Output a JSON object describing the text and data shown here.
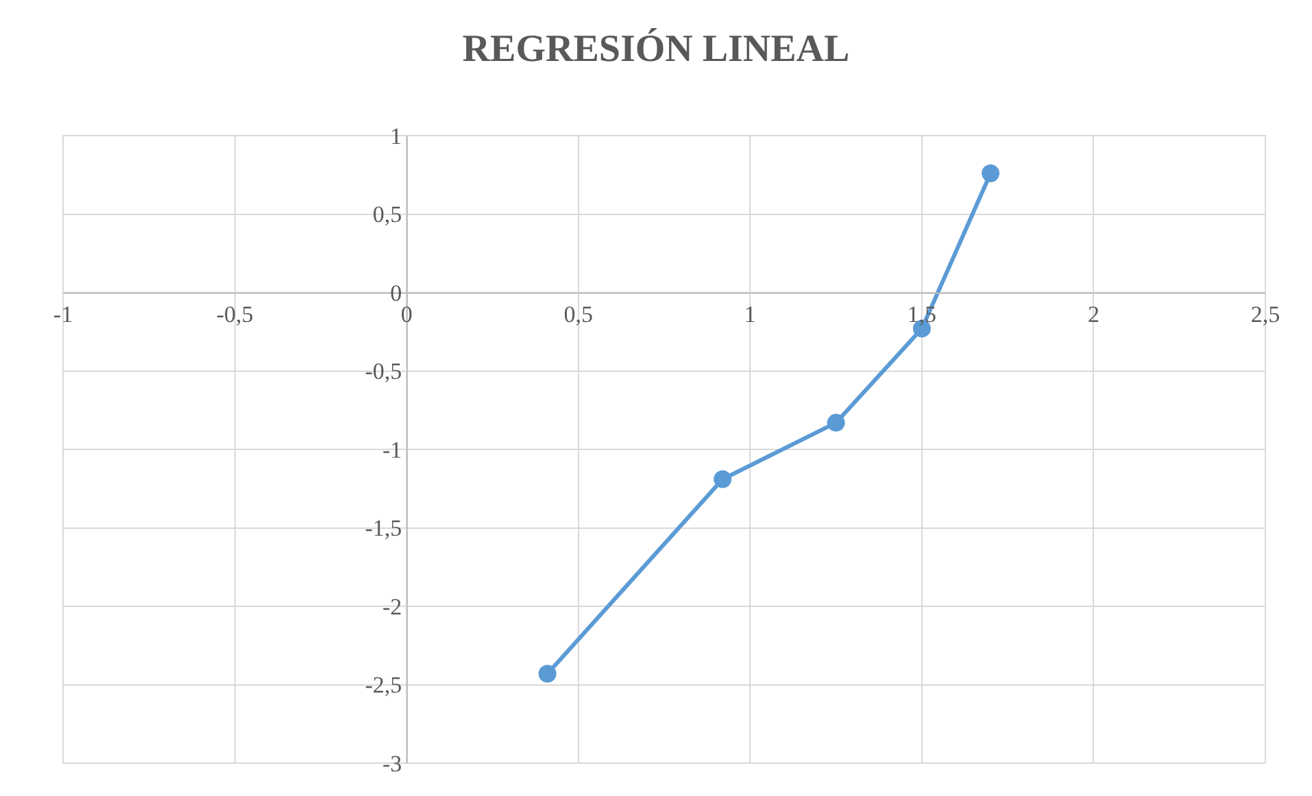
{
  "chart_data": {
    "type": "line",
    "title": "REGRESIÓN LINEAL",
    "x": [
      0.41,
      0.92,
      1.25,
      1.5,
      1.7
    ],
    "series": [
      {
        "color": "#5b9bd5",
        "values": [
          -2.43,
          -1.19,
          -0.83,
          -0.23,
          0.76
        ]
      }
    ],
    "xlim": [
      -1,
      2.5
    ],
    "ylim": [
      -3,
      1
    ],
    "xticks": [
      -1,
      {
        "value": -0.5,
        "label": "-0,5"
      },
      0,
      {
        "value": 0.5,
        "label": "0,5"
      },
      1,
      {
        "value": 1.5,
        "label": "1,5"
      },
      2,
      {
        "value": 2.5,
        "label": "2,5"
      }
    ],
    "yticks": [
      -3,
      {
        "value": -2.5,
        "label": "-2,5"
      },
      -2,
      {
        "value": -1.5,
        "label": "-1,5"
      },
      -1,
      {
        "value": -0.5,
        "label": "-0,5"
      },
      0,
      {
        "value": 0.5,
        "label": "0,5"
      },
      1
    ],
    "grid": true,
    "marker": "circle",
    "line_style": "solid"
  }
}
